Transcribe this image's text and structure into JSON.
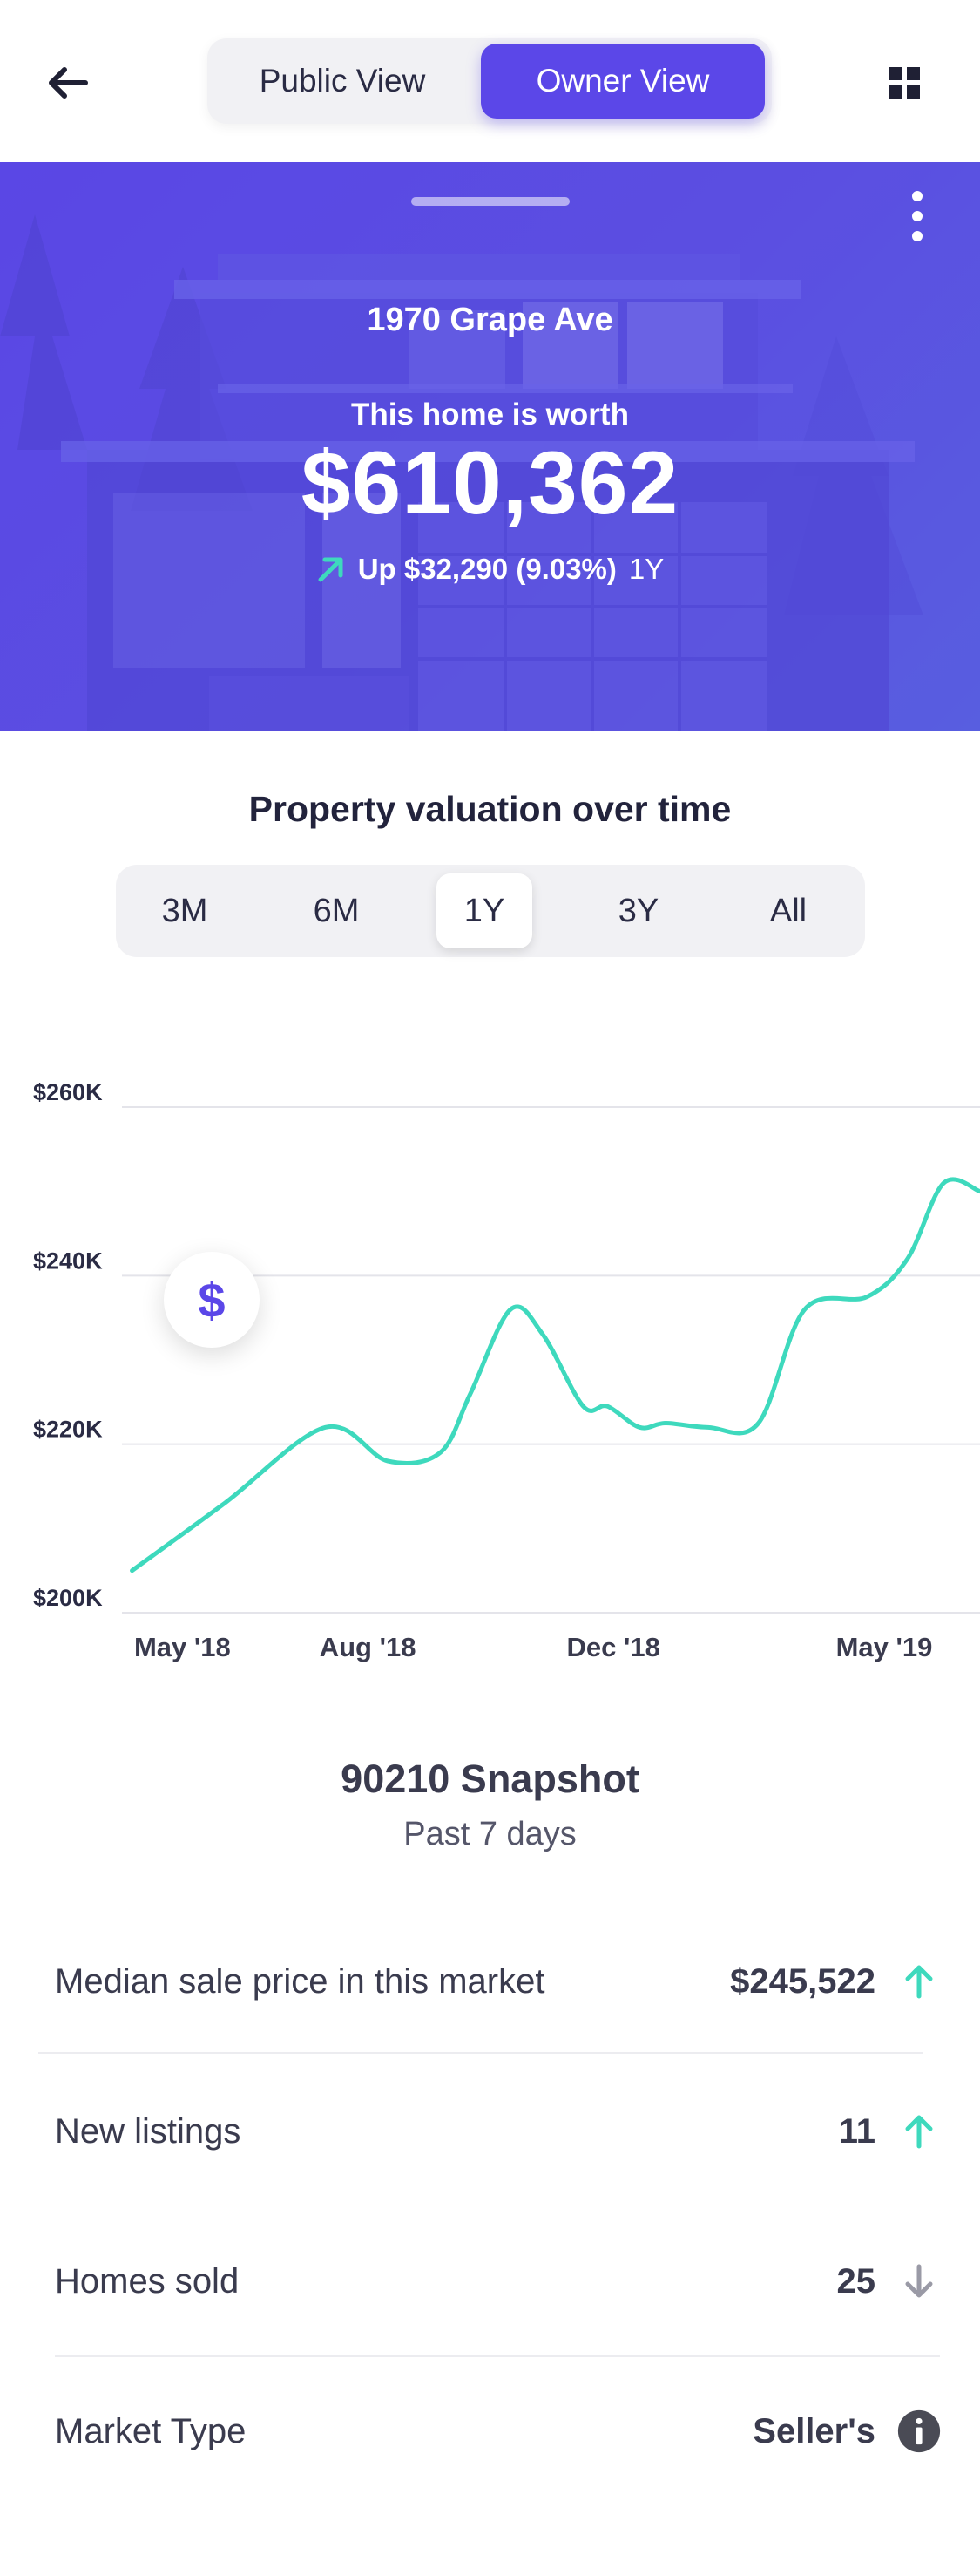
{
  "header": {
    "view_toggle": {
      "public_label": "Public View",
      "owner_label": "Owner View",
      "selected": "Owner View"
    }
  },
  "hero": {
    "address": "1970 Grape Ave",
    "worth_label": "This home is worth",
    "worth_value": "$610,362",
    "change_text": "Up $32,290 (9.03%)",
    "change_period": "1Y"
  },
  "valuation": {
    "title": "Property valuation over time",
    "ranges": [
      "3M",
      "6M",
      "1Y",
      "3Y",
      "All"
    ],
    "selected_range": "1Y"
  },
  "chart_data": {
    "type": "line",
    "title": "Property valuation over time",
    "x_ticks": [
      "May '18",
      "Aug '18",
      "Dec '18",
      "May '19"
    ],
    "y_ticks": [
      "$200K",
      "$220K",
      "$240K",
      "$260K"
    ],
    "ylim": [
      200000,
      260000
    ],
    "xlim": [
      "2018-04-15",
      "2019-06-15"
    ],
    "grid": true,
    "series": [
      {
        "color": "#3ed9bd",
        "x": [
          "2018-04-20",
          "2018-06-05",
          "2018-07-25",
          "2018-08-25",
          "2018-09-20",
          "2018-10-05",
          "2018-10-25",
          "2018-11-10",
          "2018-11-30",
          "2018-12-12",
          "2018-12-28",
          "2019-01-10",
          "2019-01-31",
          "2019-02-25",
          "2019-03-20",
          "2019-04-20",
          "2019-05-10",
          "2019-05-28",
          "2019-06-15"
        ],
        "y": [
          205000,
          213000,
          222000,
          218000,
          219000,
          226000,
          236000,
          233000,
          224500,
          224500,
          222000,
          222500,
          222000,
          222500,
          236000,
          237500,
          242000,
          251000,
          250000
        ]
      }
    ],
    "marker": {
      "label": "$"
    }
  },
  "snapshot": {
    "title": "90210 Snapshot",
    "subtitle": "Past 7 days",
    "rows": [
      {
        "label": "Median sale price in this market",
        "value": "$245,522",
        "trend": "up"
      },
      {
        "label": "New listings",
        "value": "11",
        "trend": "up"
      },
      {
        "label": "Homes sold",
        "value": "25",
        "trend": "down"
      },
      {
        "label": "Market Type",
        "value": "Seller's",
        "trend": "info"
      }
    ]
  },
  "icons": {
    "back": "arrow-left-icon",
    "grid": "grid-icon",
    "more": "more-vertical-icon",
    "trend_up": "arrow-up-right-icon",
    "stat_up": "arrow-up-icon",
    "stat_down": "arrow-down-icon",
    "info": "info-icon"
  },
  "colors": {
    "accent": "#5b47e8",
    "hero_bg": "#5b4fe0",
    "positive": "#3ed9bd",
    "neutral_down": "#9a9aa6",
    "info_bg": "#4a4b55",
    "text_dark": "#2a2b44"
  }
}
